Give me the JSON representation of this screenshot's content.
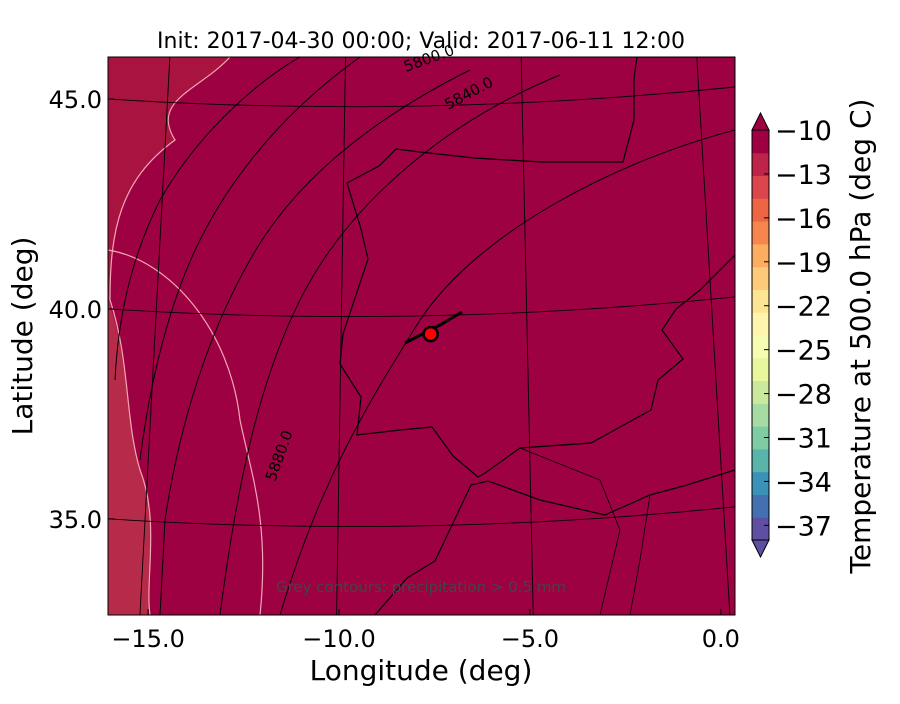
{
  "chart_data": {
    "type": "map",
    "title": "Init: 2017-04-30 00:00; Valid: 2017-06-11 12:00",
    "x_label": "Longitude (deg)",
    "y_label": "Latitude (deg)",
    "xlim": [
      -16.05,
      0.37
    ],
    "ylim": [
      32.71,
      46.0
    ],
    "xticks": [
      {
        "value": -15,
        "label": "−15.0"
      },
      {
        "value": -10,
        "label": "−10.0"
      },
      {
        "value": -5,
        "label": "−5.0"
      },
      {
        "value": 0,
        "label": "0.0"
      }
    ],
    "yticks": [
      {
        "value": 35,
        "label": "35.0"
      },
      {
        "value": 40,
        "label": "40.0"
      },
      {
        "value": 45,
        "label": "45.0"
      }
    ],
    "field_color": "#9e0142",
    "marker": {
      "lon": -7.6,
      "lat": 39.4,
      "color": "#ff0000"
    },
    "contour_labels": [
      "5800.0",
      "5840.0",
      "5880.0"
    ],
    "annotation": "Grey contours: precipitation > 0.5 mm",
    "colorbar": {
      "label": "Temperature at 500.0 hPa (deg C)",
      "lim": [
        -38,
        -10
      ],
      "ticks": [
        {
          "value": -10,
          "label": "−10"
        },
        {
          "value": -13,
          "label": "−13"
        },
        {
          "value": -16,
          "label": "−16"
        },
        {
          "value": -19,
          "label": "−19"
        },
        {
          "value": -22,
          "label": "−22"
        },
        {
          "value": -25,
          "label": "−25"
        },
        {
          "value": -28,
          "label": "−28"
        },
        {
          "value": -31,
          "label": "−31"
        },
        {
          "value": -34,
          "label": "−34"
        },
        {
          "value": -37,
          "label": "−37"
        }
      ],
      "colors": [
        "#5e4fa2",
        "#4470b1",
        "#3b92b8",
        "#59b4aa",
        "#7ecba4",
        "#a6dba4",
        "#cae99d",
        "#e8f69c",
        "#f7fcb3",
        "#fff5ae",
        "#fee593",
        "#fdca79",
        "#fdad60",
        "#f7864e",
        "#ee6544",
        "#da464c",
        "#be2449",
        "#9e0142"
      ]
    }
  }
}
